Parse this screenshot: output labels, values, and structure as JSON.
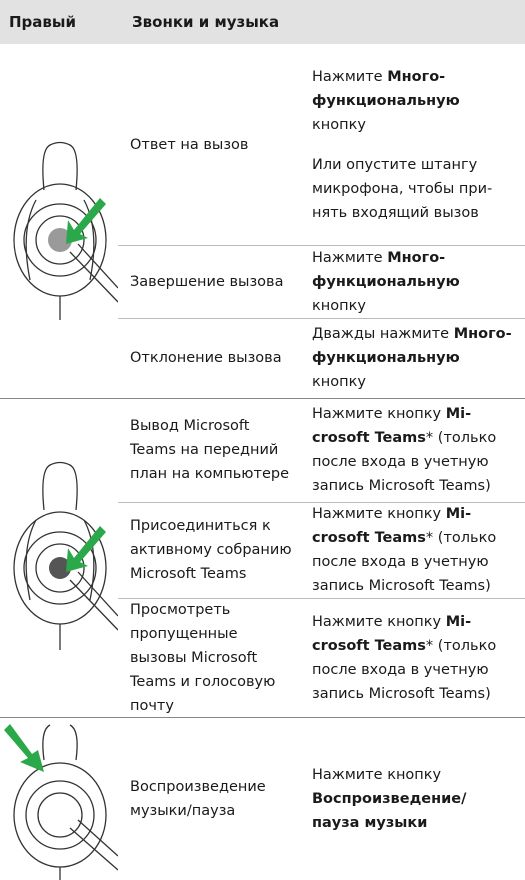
{
  "header": {
    "col1": "Правый",
    "col2": "Звонки и музыка"
  },
  "groups": [
    {
      "rows": [
        {
          "action": "Ответ на вызов",
          "instruction": [
            {
              "text": "Нажмите ",
              "bold": false
            },
            {
              "text": "Много­функциональную",
              "bold": true
            },
            {
              "text": " кнопку",
              "bold": false
            },
            {
              "text": "Или опустите штангу микрофона, чтобы при­нять входящий вызов",
              "bold": false,
              "paragraph": true
            }
          ]
        },
        {
          "action": "Завершение вызова",
          "instruction": [
            {
              "text": "Нажмите ",
              "bold": false
            },
            {
              "text": "Много­функциональную",
              "bold": true
            },
            {
              "text": " кнопку",
              "bold": false
            }
          ]
        },
        {
          "action": "Отклонение вызова",
          "instruction": [
            {
              "text": "Дважды на­жмите ",
              "bold": false
            },
            {
              "text": "Много­функциональную",
              "bold": true
            },
            {
              "text": " кнопку",
              "bold": false
            }
          ]
        }
      ]
    },
    {
      "rows": [
        {
          "action": "Вывод Microsoft Teams на передний план на компьютере",
          "instruction": [
            {
              "text": "Нажмите кнопку ",
              "bold": false
            },
            {
              "text": "Mi­crosoft Teams",
              "bold": true
            },
            {
              "text": "* (только после входа в учетную запись Microsoft Teams)",
              "bold": false
            }
          ]
        },
        {
          "action": "Присоединиться к активному собранию Microsoft Teams",
          "instruction": [
            {
              "text": "Нажмите кнопку ",
              "bold": false
            },
            {
              "text": "Mi­crosoft Teams",
              "bold": true
            },
            {
              "text": "* (только после входа в учетную запись Microsoft Teams)",
              "bold": false
            }
          ]
        },
        {
          "action": "Просмотреть пропущенные вызовы Microsoft Teams и голосовую почту",
          "instruction": [
            {
              "text": "Нажмите кнопку ",
              "bold": false
            },
            {
              "text": "Mi­crosoft Teams",
              "bold": true
            },
            {
              "text": "* (только после входа в учетную запись Microsoft Teams)",
              "bold": false
            }
          ]
        }
      ]
    },
    {
      "rows": [
        {
          "action": "Воспроизведение музыки/пауза",
          "instruction": [
            {
              "text": "Нажмите кнопку ",
              "bold": false
            },
            {
              "text": "Воспроизведение/ пауза музыки",
              "bold": true
            }
          ]
        }
      ]
    }
  ]
}
